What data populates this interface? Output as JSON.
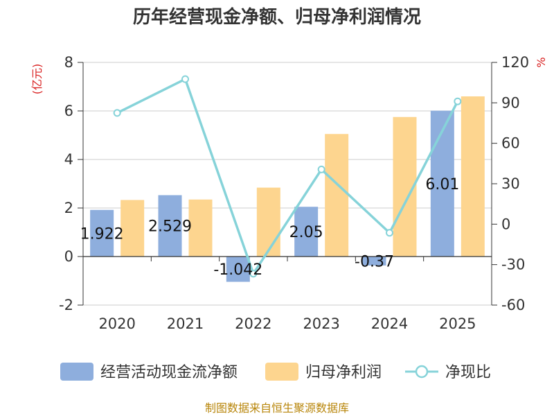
{
  "chart_data": {
    "type": "bar",
    "title": "历年经营现金净额、归母净利润情况",
    "categories": [
      "2020",
      "2021",
      "2022",
      "2023",
      "2024",
      "2025"
    ],
    "series": [
      {
        "name": "经营活动现金流净额",
        "type": "bar",
        "axis": "left",
        "color": "#8eaedd",
        "values": [
          1.922,
          2.529,
          -1.042,
          2.05,
          -0.37,
          6.01
        ],
        "labels": [
          "1.922",
          "2.529",
          "-1.042",
          "2.05",
          "-0.37",
          "6.01"
        ]
      },
      {
        "name": "归母净利润",
        "type": "bar",
        "axis": "left",
        "color": "#fdd58f",
        "values": [
          2.33,
          2.35,
          2.84,
          5.05,
          5.75,
          6.6
        ]
      },
      {
        "name": "净现比",
        "type": "line",
        "axis": "right",
        "color": "#86d3d9",
        "values": [
          82.5,
          107.6,
          -36.7,
          40.6,
          -6.4,
          91.1
        ]
      }
    ],
    "left_axis": {
      "unit": "(亿元)",
      "ylim": [
        -2,
        8
      ],
      "ticks": [
        "-2",
        "0",
        "2",
        "4",
        "6",
        "8"
      ]
    },
    "right_axis": {
      "unit": "%",
      "ylim": [
        -60,
        120
      ],
      "ticks": [
        "-60",
        "-30",
        "0",
        "30",
        "60",
        "90",
        "120"
      ]
    },
    "legend_position": "bottom",
    "source": "制图数据来自恒生聚源数据库"
  }
}
